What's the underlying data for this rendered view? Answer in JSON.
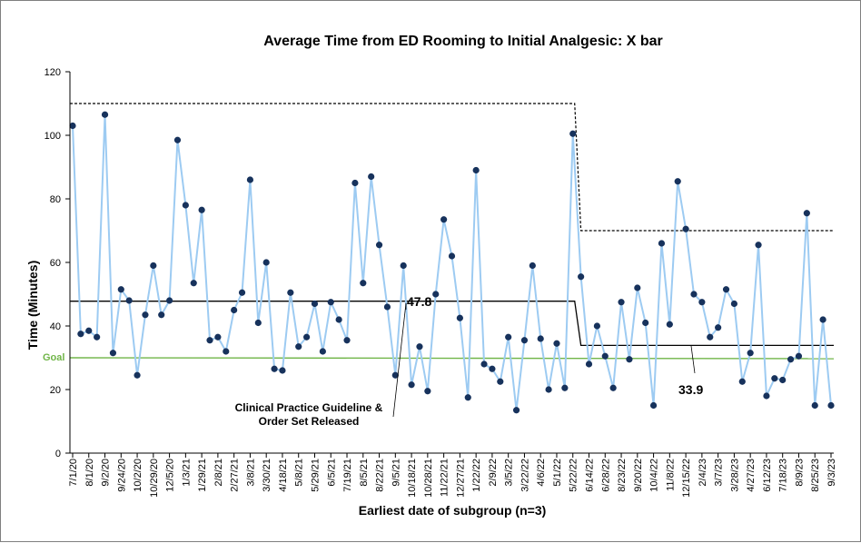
{
  "chart_data": {
    "type": "line",
    "title": "Average Time from ED Rooming to Initial Analgesic: X bar",
    "xlabel": "Earliest date of subgroup (n=3)",
    "ylabel": "Time (Minutes)",
    "ylim": [
      0,
      120
    ],
    "yticks": [
      0,
      20,
      40,
      60,
      80,
      100,
      120
    ],
    "xtick_labels": [
      "7/1/20",
      "8/1/20",
      "9/2/20",
      "9/24/20",
      "10/2/20",
      "10/29/20",
      "12/5/20",
      "1/3/21",
      "1/29/21",
      "2/8/21",
      "2/27/21",
      "3/8/21",
      "3/30/21",
      "4/18/21",
      "5/8/21",
      "5/29/21",
      "6/5/21",
      "7/19/21",
      "8/5/21",
      "8/22/21",
      "9/5/21",
      "10/18/21",
      "10/28/21",
      "11/22/21",
      "12/27/21",
      "1/22/22",
      "2/9/22",
      "3/5/22",
      "3/22/22",
      "4/6/22",
      "5/1/22",
      "5/22/22",
      "6/14/22",
      "6/28/22",
      "8/23/22",
      "9/20/22",
      "10/4/22",
      "11/8/22",
      "12/15/22",
      "2/4/23",
      "3/7/23",
      "3/28/23",
      "4/27/23",
      "6/12/23",
      "7/18/23",
      "8/9/23",
      "8/25/23",
      "9/3/23"
    ],
    "tick_every": 2,
    "series": [
      {
        "name": "",
        "color": "#9dcbf2",
        "marker_color": "#17325c",
        "values": [
          103,
          37.5,
          38.5,
          36.5,
          106.5,
          31.5,
          51.5,
          48,
          24.5,
          43.5,
          59,
          43.5,
          48,
          98.5,
          78,
          53.5,
          76.5,
          35.5,
          36.5,
          32,
          45,
          50.5,
          86,
          41,
          60,
          26.5,
          26,
          50.5,
          33.5,
          36.5,
          47,
          32,
          47.5,
          42,
          35.5,
          85,
          53.5,
          87,
          65.5,
          46,
          24.5,
          59,
          21.5,
          33.5,
          19.5,
          50,
          73.5,
          62,
          42.5,
          17.5,
          89,
          28,
          26.5,
          22.5,
          36.5,
          13.5,
          35.5,
          59,
          36,
          20,
          34.5,
          20.5,
          100.5,
          55.5,
          28,
          40,
          30.5,
          20.5,
          47.5,
          29.5,
          52,
          41,
          15,
          66,
          40.5,
          85.5,
          70.5,
          50,
          47.5,
          36.5,
          39.5,
          51.5,
          47,
          22.5,
          31.5,
          65.5,
          18,
          23.5,
          23,
          29.5,
          30.5,
          75.5,
          15,
          42,
          15
        ]
      }
    ],
    "center_line": {
      "phase1_value": 47.8,
      "phase2_value": 33.9,
      "label1": "47.8",
      "label2": "33.9",
      "color": "#000000"
    },
    "ucl": {
      "phase1_value": 110,
      "phase2_value": 70,
      "color": "#000000"
    },
    "goal": {
      "label": "Goal",
      "value": 30,
      "color": "#70b548"
    },
    "annotation": {
      "line1": "Clinical Practice Guideline &",
      "line2": "Order Set Released"
    },
    "phase_change_index": 63,
    "grid": false,
    "legend": "none"
  }
}
